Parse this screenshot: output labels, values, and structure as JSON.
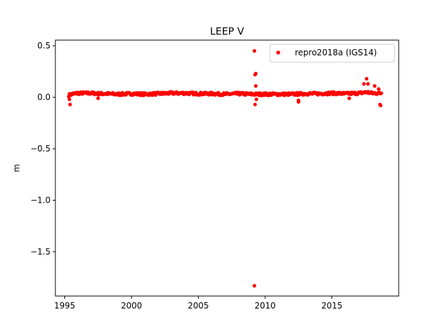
{
  "chart_data": {
    "type": "scatter",
    "title": "LEEP V",
    "xlabel": "",
    "ylabel": "m",
    "xlim": [
      1994.3,
      2020.0
    ],
    "ylim": [
      -1.93,
      0.555
    ],
    "x_ticks": [
      1995,
      2000,
      2005,
      2010,
      2015
    ],
    "x_tick_labels": [
      "1995",
      "2000",
      "2005",
      "2010",
      "2015"
    ],
    "y_ticks": [
      0.5,
      0.0,
      -0.5,
      -1.0,
      -1.5
    ],
    "y_tick_labels": [
      "0.5",
      "0.0",
      "−0.5",
      "−1.0",
      "−1.5"
    ],
    "legend": {
      "position": "top-right",
      "entries": [
        "repro2018a (IGS14)"
      ]
    },
    "grid": false,
    "colors": {
      "series": "#ff0000",
      "axes": "#000000",
      "legend_border": "#cccccc"
    },
    "series": [
      {
        "name": "repro2018a (IGS14)",
        "band": [
          [
            1995.3,
            0.02
          ],
          [
            1995.5,
            0.03
          ],
          [
            1996.0,
            0.04
          ],
          [
            1996.5,
            0.04
          ],
          [
            1997.0,
            0.04
          ],
          [
            1997.5,
            0.035
          ],
          [
            1998.0,
            0.035
          ],
          [
            1999.0,
            0.03
          ],
          [
            2000.0,
            0.035
          ],
          [
            2001.0,
            0.03
          ],
          [
            2002.0,
            0.035
          ],
          [
            2003.0,
            0.04
          ],
          [
            2004.0,
            0.04
          ],
          [
            2005.0,
            0.035
          ],
          [
            2006.0,
            0.035
          ],
          [
            2007.0,
            0.03
          ],
          [
            2008.0,
            0.035
          ],
          [
            2009.0,
            0.03
          ],
          [
            2010.0,
            0.03
          ],
          [
            2011.0,
            0.03
          ],
          [
            2012.0,
            0.03
          ],
          [
            2013.0,
            0.035
          ],
          [
            2014.0,
            0.035
          ],
          [
            2015.0,
            0.04
          ],
          [
            2016.0,
            0.035
          ],
          [
            2017.0,
            0.04
          ],
          [
            2017.6,
            0.05
          ],
          [
            2018.0,
            0.04
          ],
          [
            2018.7,
            0.04
          ]
        ],
        "outliers": [
          [
            1995.4,
            -0.07
          ],
          [
            1995.35,
            -0.02
          ],
          [
            1997.5,
            -0.01
          ],
          [
            2009.2,
            0.45
          ],
          [
            2009.25,
            0.22
          ],
          [
            2009.3,
            0.23
          ],
          [
            2009.3,
            0.11
          ],
          [
            2009.35,
            -0.02
          ],
          [
            2009.25,
            -0.07
          ],
          [
            2009.2,
            -1.83
          ],
          [
            2012.5,
            -0.03
          ],
          [
            2012.5,
            -0.045
          ],
          [
            2016.3,
            -0.01
          ],
          [
            2017.4,
            0.13
          ],
          [
            2017.6,
            0.18
          ],
          [
            2017.7,
            0.13
          ],
          [
            2018.2,
            0.11
          ],
          [
            2018.5,
            0.08
          ],
          [
            2018.6,
            -0.07
          ],
          [
            2018.65,
            -0.08
          ]
        ]
      }
    ]
  }
}
